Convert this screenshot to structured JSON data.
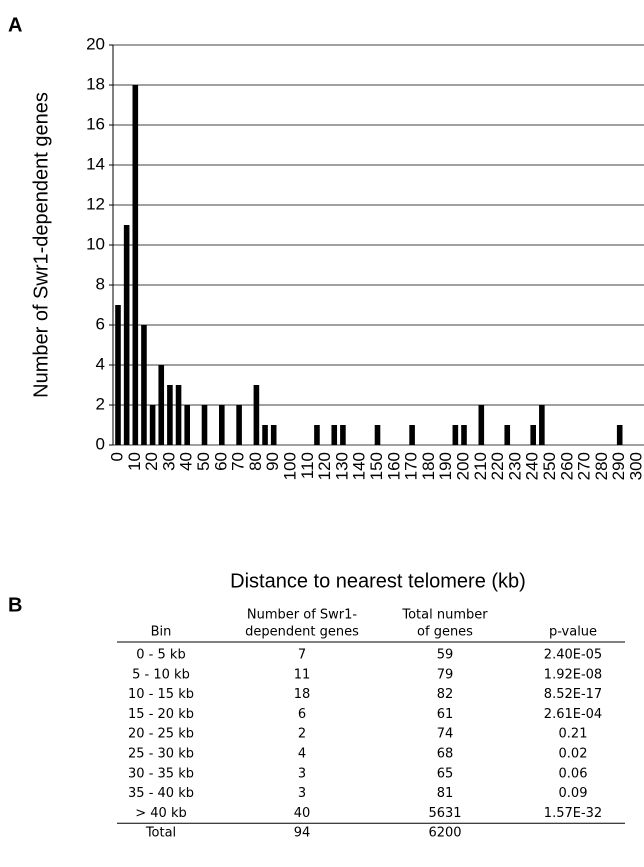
{
  "chart_data": {
    "type": "bar",
    "panel_label": "A",
    "xlabel": "Distance to nearest telomere (kb)",
    "ylabel": "Number of Swr1-dependent genes",
    "categories": [
      "0",
      null,
      "10",
      null,
      "20",
      null,
      "30",
      null,
      "40",
      null,
      "50",
      null,
      "60",
      null,
      "70",
      null,
      "80",
      null,
      "90",
      null,
      "100",
      null,
      "110",
      null,
      "120",
      null,
      "130",
      null,
      "140",
      null,
      "150",
      null,
      "160",
      null,
      "170",
      null,
      "180",
      null,
      "190",
      null,
      "200",
      null,
      "210",
      null,
      "220",
      null,
      "230",
      null,
      "240",
      null,
      "250",
      null,
      "260",
      null,
      "270",
      null,
      "280",
      null,
      "290",
      null,
      "300"
    ],
    "values": [
      7,
      11,
      18,
      6,
      2,
      4,
      3,
      3,
      2,
      0,
      2,
      0,
      2,
      0,
      2,
      0,
      3,
      1,
      1,
      0,
      0,
      0,
      0,
      1,
      0,
      1,
      1,
      0,
      0,
      0,
      1,
      0,
      0,
      0,
      1,
      0,
      0,
      0,
      0,
      1,
      1,
      0,
      2,
      0,
      0,
      1,
      0,
      0,
      1,
      2,
      0,
      0,
      0,
      0,
      0,
      0,
      0,
      0,
      1,
      0,
      0
    ],
    "color": "#000000",
    "ylim": [
      0,
      20
    ],
    "yticks": [
      0,
      2,
      4,
      6,
      8,
      10,
      12,
      14,
      16,
      18,
      20
    ],
    "grid": true
  },
  "table": {
    "panel_label": "B",
    "header": [
      [
        "Bin"
      ],
      [
        "Number of Swr1-",
        "dependent genes"
      ],
      [
        "Total number",
        "of genes"
      ],
      [
        "p-value"
      ]
    ],
    "rows": [
      [
        "0 - 5 kb",
        "7",
        "59",
        "2.40E-05"
      ],
      [
        "5 - 10 kb",
        "11",
        "79",
        "1.92E-08"
      ],
      [
        "10 - 15 kb",
        "18",
        "82",
        "8.52E-17"
      ],
      [
        "15 - 20 kb",
        "6",
        "61",
        "2.61E-04"
      ],
      [
        "20 - 25 kb",
        "2",
        "74",
        "0.21"
      ],
      [
        "25 - 30 kb",
        "4",
        "68",
        "0.02"
      ],
      [
        "30 - 35 kb",
        "3",
        "65",
        "0.06"
      ],
      [
        "35 - 40 kb",
        "3",
        "81",
        "0.09"
      ],
      [
        "> 40 kb",
        "40",
        "5631",
        "1.57E-32"
      ],
      [
        "Total",
        "94",
        "6200"
      ]
    ]
  }
}
